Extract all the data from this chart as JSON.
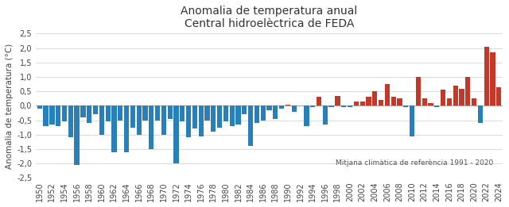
{
  "title_line1": "Anomalia de temperatura anual",
  "title_line2": "Central hidroelèctrica de FEDA",
  "ylabel": "Anomalia de temperatura (°C)",
  "reference_text": "Mitjana climàtica de referència 1991 - 2020",
  "ylim": [
    -2.5,
    2.5
  ],
  "yticks": [
    -2.5,
    -2.0,
    -1.5,
    -1.0,
    -0.5,
    0.0,
    0.5,
    1.0,
    1.5,
    2.0,
    2.5
  ],
  "years": [
    1950,
    1951,
    1952,
    1953,
    1954,
    1955,
    1956,
    1957,
    1958,
    1959,
    1960,
    1961,
    1962,
    1963,
    1964,
    1965,
    1966,
    1967,
    1968,
    1969,
    1970,
    1971,
    1972,
    1973,
    1974,
    1975,
    1976,
    1977,
    1978,
    1979,
    1980,
    1981,
    1982,
    1983,
    1984,
    1985,
    1986,
    1987,
    1988,
    1989,
    1990,
    1991,
    1992,
    1993,
    1994,
    1995,
    1996,
    1997,
    1998,
    1999,
    2000,
    2001,
    2002,
    2003,
    2004,
    2005,
    2006,
    2007,
    2008,
    2009,
    2010,
    2011,
    2012,
    2013,
    2014,
    2015,
    2016,
    2017,
    2018,
    2019,
    2020,
    2021,
    2022,
    2023,
    2024
  ],
  "values": [
    -0.1,
    -0.7,
    -0.65,
    -0.7,
    -0.55,
    -1.1,
    -2.05,
    -0.4,
    -0.6,
    -0.3,
    -1.0,
    -0.55,
    -1.6,
    -0.5,
    -1.6,
    -0.75,
    -1.0,
    -0.5,
    -1.5,
    -0.5,
    -1.0,
    -0.45,
    -2.0,
    -0.55,
    -1.1,
    -0.8,
    -1.05,
    -0.5,
    -0.9,
    -0.75,
    -0.55,
    -0.7,
    -0.65,
    -0.3,
    -1.4,
    -0.6,
    -0.5,
    -0.15,
    -0.45,
    -0.1,
    0.05,
    -0.2,
    0.0,
    -0.7,
    -0.05,
    0.3,
    -0.65,
    -0.05,
    0.35,
    -0.05,
    -0.05,
    0.15,
    0.15,
    0.3,
    0.5,
    0.2,
    0.75,
    0.3,
    0.25,
    -0.05,
    -1.05,
    1.0,
    0.25,
    0.1,
    -0.05,
    0.55,
    0.25,
    0.7,
    0.6,
    1.0,
    0.25,
    -0.6,
    2.05,
    1.85,
    0.65
  ],
  "color_positive": "#c0392b",
  "color_negative": "#2980b9",
  "background_color": "#ffffff",
  "grid_color": "#cccccc",
  "title_fontsize": 10,
  "tick_fontsize": 7,
  "ylabel_fontsize": 7.5
}
